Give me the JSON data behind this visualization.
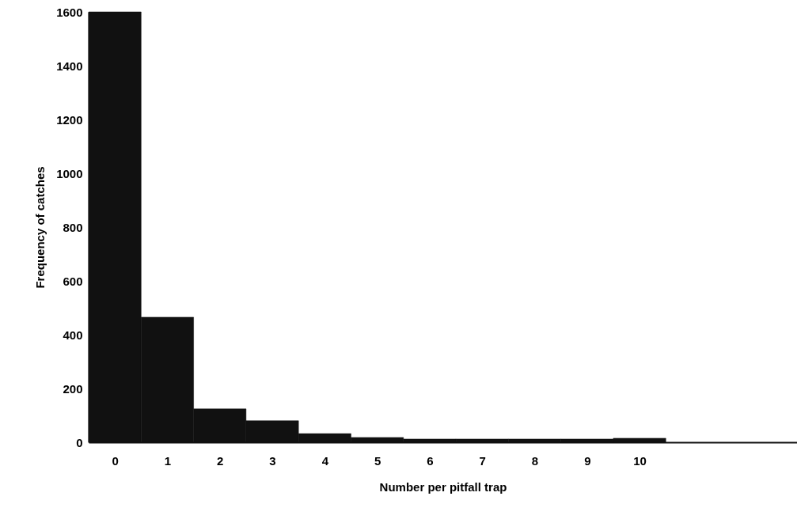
{
  "chart_data": {
    "type": "histogram",
    "xlabel": "Number per pitfall trap",
    "ylabel": "Frequency of catches",
    "bins": [
      -0.5,
      0.5,
      1.5,
      2.5,
      3.5,
      4.5,
      5.5,
      6.5,
      7.5,
      8.5,
      9.5,
      10.5
    ],
    "values": [
      1600,
      465,
      124,
      80,
      32,
      18,
      12,
      12,
      12,
      12,
      15
    ],
    "color": "#111111",
    "xlim": [
      -0.5,
      13
    ],
    "xticks": [
      0,
      1,
      2,
      3,
      4,
      5,
      6,
      7,
      8,
      9,
      10
    ],
    "ylim": [
      0,
      1600
    ],
    "yticks": [
      0,
      200,
      400,
      600,
      800,
      1000,
      1200,
      1400,
      1600
    ],
    "grid": false
  }
}
